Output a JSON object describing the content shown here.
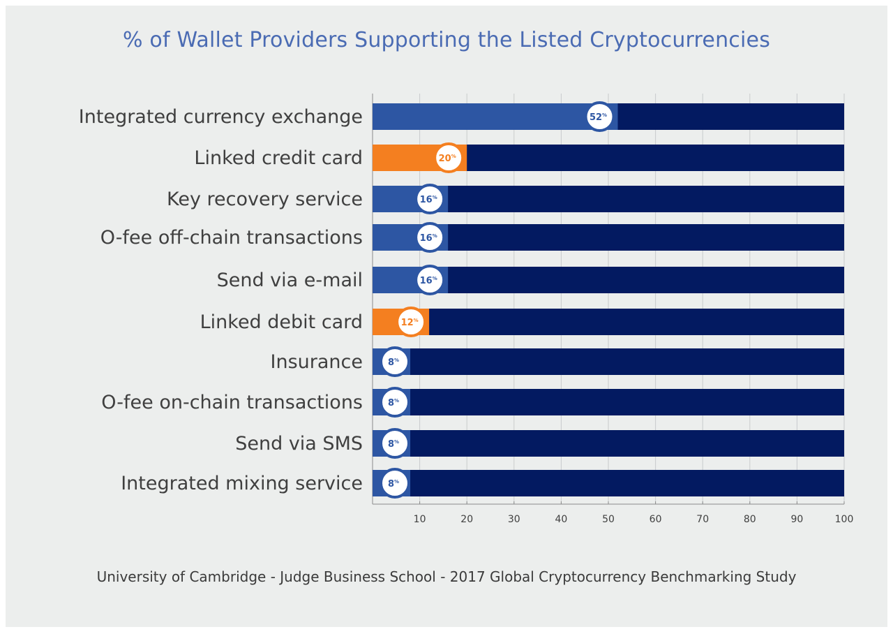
{
  "chart_data": {
    "type": "bar",
    "orientation": "horizontal",
    "stacked_to_total": 100,
    "title": "% of Wallet Providers Supporting the Listed Cryptocurrencies",
    "categories": [
      "Integrated currency exchange",
      "Linked credit card",
      "Key recovery service",
      "O-fee off-chain transactions",
      "Send via e-mail",
      "Linked debit card",
      "Insurance",
      "O-fee on-chain transactions",
      "Send via SMS",
      "Integrated mixing service"
    ],
    "values": [
      52,
      20,
      16,
      16,
      16,
      12,
      8,
      8,
      8,
      8
    ],
    "value_labels": [
      "52",
      "20",
      "16",
      "16",
      "16",
      "12",
      "8",
      "8",
      "8",
      "8"
    ],
    "value_suffix": "%",
    "highlight": [
      false,
      true,
      false,
      false,
      false,
      true,
      false,
      false,
      false,
      false
    ],
    "xlim": [
      0,
      100
    ],
    "xticks": [
      10,
      20,
      30,
      40,
      50,
      60,
      70,
      80,
      90,
      100
    ],
    "grid": true,
    "colors": {
      "value_bar": "#2d56a3",
      "highlight_bar": "#f47f20",
      "remainder_bar": "#031a61",
      "grid": "#c9cbcc",
      "title": "#4a6bb3"
    }
  },
  "source_note": "University of Cambridge - Judge Business School - 2017 Global Cryptocurrency Benchmarking Study"
}
